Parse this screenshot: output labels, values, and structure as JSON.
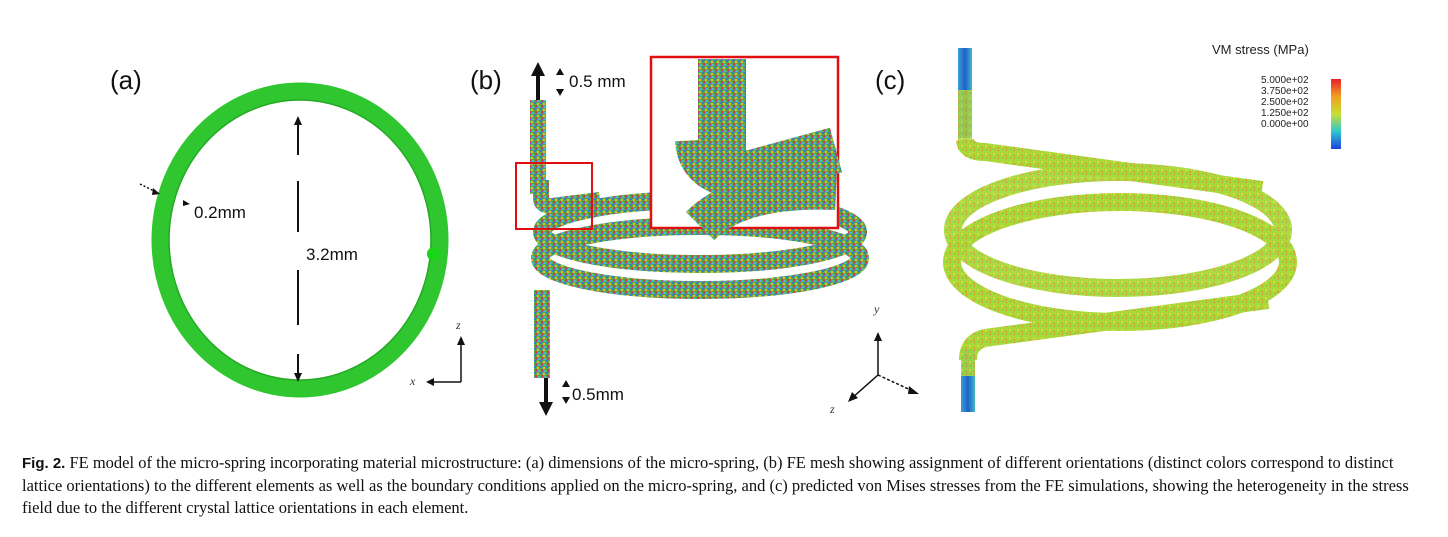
{
  "panels": {
    "a": {
      "label": "(a)",
      "dim_wire": "0.2mm",
      "dim_coil": "3.2mm",
      "axis_z": "z",
      "axis_x": "x"
    },
    "b": {
      "label": "(b)",
      "dim_top": "0.5 mm",
      "dim_bottom": "0.5mm",
      "axis_y": "y",
      "axis_z": "z"
    },
    "c": {
      "label": "(c)",
      "legend_title": "VM stress (MPa)",
      "legend_ticks": [
        "5.000e+02",
        "3.750e+02",
        "2.500e+02",
        "1.250e+02",
        "0.000e+00"
      ]
    }
  },
  "caption": {
    "lead": "Fig. 2.",
    "text": "FE model of the micro-spring incorporating material microstructure: (a) dimensions of the micro-spring, (b) FE mesh showing assignment of different orientations (distinct colors correspond to distinct lattice orientations) to the different elements as well as the boundary conditions applied on the micro-spring, and (c) predicted von Mises stresses from the FE simulations, showing the heterogeneity in the stress field due to the different crystal lattice orientations in each element."
  },
  "colors": {
    "ring_green": "#2fc62f",
    "highlight_red": "#e01010",
    "stress_yellow": "#b6dc3a"
  }
}
